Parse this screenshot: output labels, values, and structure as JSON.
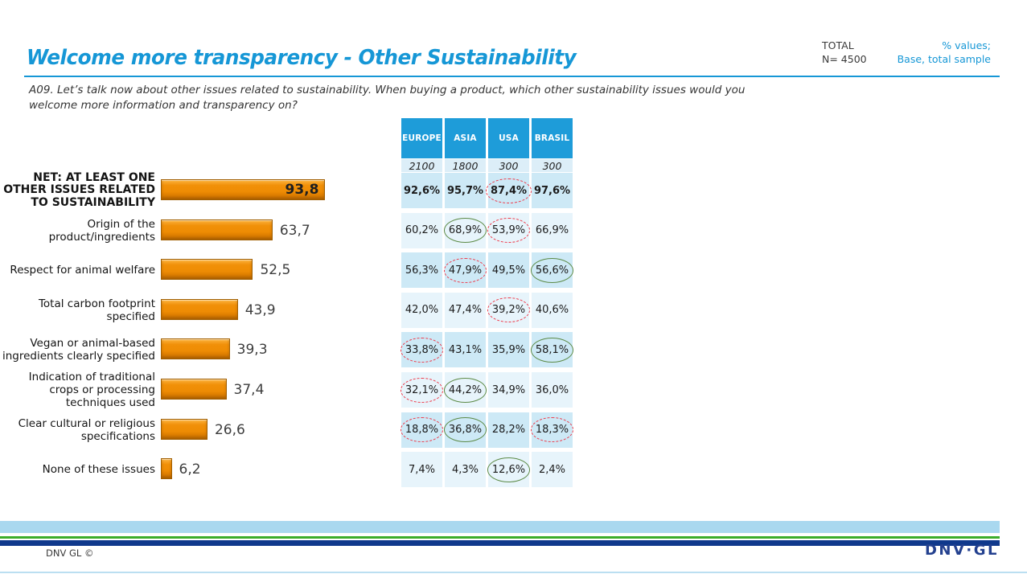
{
  "header": {
    "title": "Welcome more transparency  - Other Sustainability",
    "total_label": "TOTAL",
    "total_n": "N= 4500",
    "note_lines": [
      "% values;",
      "Base, total sample"
    ],
    "question_lines": [
      "A09. Let’s talk now about other issues related to sustainability. When buying a product, which other sustainability issues would you",
      "welcome more information and transparency on?"
    ]
  },
  "chart_data": {
    "type": "bar",
    "orientation": "horizontal",
    "title": "Welcome more transparency - Other Sustainability",
    "xlim": [
      0,
      100
    ],
    "decimal_style": "comma",
    "bar_color": "#EE8D05",
    "categories": [
      "NET: AT LEAST ONE OTHER ISSUES RELATED TO SUSTAINABILITY",
      "Origin of the product/ingredients",
      "Respect for animal welfare",
      "Total carbon footprint specified",
      "Vegan or animal-based ingredients clearly specified",
      "Indication of traditional crops or processing techniques used",
      "Clear cultural or religious specifications",
      "None of these issues"
    ],
    "values": [
      93.8,
      63.7,
      52.5,
      43.9,
      39.3,
      37.4,
      26.6,
      6.2
    ],
    "value_labels": [
      "93,8",
      "63,7",
      "52,5",
      "43,9",
      "39,3",
      "37,4",
      "26,6",
      "6,2"
    ],
    "value_label_inside": [
      true,
      false,
      false,
      false,
      false,
      false,
      false,
      false
    ],
    "table": {
      "columns": [
        "EUROPE",
        "ASIA",
        "USA",
        "BRASIL"
      ],
      "bases": [
        "2100",
        "1800",
        "300",
        "300"
      ],
      "marker_styles": {
        "green": "solid green ellipse",
        "red": "dashed red ellipse"
      },
      "rows": [
        {
          "cells": [
            "92,6%",
            "95,7%",
            "87,4%",
            "97,6%"
          ],
          "circles": [
            null,
            null,
            "red",
            null
          ],
          "bold": true
        },
        {
          "cells": [
            "60,2%",
            "68,9%",
            "53,9%",
            "66,9%"
          ],
          "circles": [
            null,
            "green",
            "red",
            null
          ],
          "bold": false
        },
        {
          "cells": [
            "56,3%",
            "47,9%",
            "49,5%",
            "56,6%"
          ],
          "circles": [
            null,
            "red",
            null,
            "green"
          ],
          "bold": false
        },
        {
          "cells": [
            "42,0%",
            "47,4%",
            "39,2%",
            "40,6%"
          ],
          "circles": [
            null,
            null,
            "red",
            null
          ],
          "bold": false
        },
        {
          "cells": [
            "33,8%",
            "43,1%",
            "35,9%",
            "58,1%"
          ],
          "circles": [
            "red",
            null,
            null,
            "green"
          ],
          "bold": false
        },
        {
          "cells": [
            "32,1%",
            "44,2%",
            "34,9%",
            "36,0%"
          ],
          "circles": [
            "red",
            "green",
            null,
            null
          ],
          "bold": false
        },
        {
          "cells": [
            "18,8%",
            "36,8%",
            "28,2%",
            "18,3%"
          ],
          "circles": [
            "red",
            "green",
            null,
            "red"
          ],
          "bold": false
        },
        {
          "cells": [
            "7,4%",
            "4,3%",
            "12,6%",
            "2,4%"
          ],
          "circles": [
            null,
            null,
            "green",
            null
          ],
          "bold": false
        }
      ]
    }
  },
  "footer": {
    "copyright": "DNV GL ©",
    "logo": "DNV·GL"
  },
  "colors": {
    "accent": "#1697D6",
    "hblue": "#1E9CD9",
    "rowdark": "#CDE9F6",
    "rowlight": "#E7F4FB",
    "basebg": "#DCEEF8",
    "green": "#3BAD2B",
    "navy": "#10398C",
    "lightblue": "#A9D8EF"
  }
}
